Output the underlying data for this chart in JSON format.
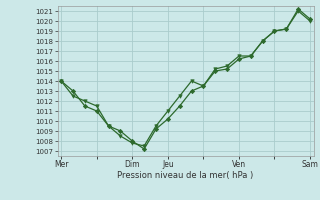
{
  "background_color": "#cce8e8",
  "plot_bg_color": "#cce8e8",
  "grid_color": "#aacccc",
  "line_color": "#2d6a2d",
  "marker_color": "#2d6a2d",
  "xlabel": "Pression niveau de la mer( hPa )",
  "ylim": [
    1006.5,
    1021.5
  ],
  "yticks": [
    1007,
    1008,
    1009,
    1010,
    1011,
    1012,
    1013,
    1014,
    1015,
    1016,
    1017,
    1018,
    1019,
    1020,
    1021
  ],
  "xtick_labels": [
    "Mer",
    "",
    "Dim",
    "Jeu",
    "",
    "Ven",
    "",
    "Sam"
  ],
  "xtick_positions": [
    0,
    3,
    6,
    9,
    12,
    15,
    18,
    21
  ],
  "line1_x": [
    0,
    1,
    2,
    3,
    4,
    5,
    6,
    7,
    8,
    9,
    10,
    11,
    12,
    13,
    14,
    15,
    16,
    17,
    18,
    19,
    20,
    21
  ],
  "line1_y": [
    1014,
    1013,
    1011.5,
    1011,
    1009.5,
    1009,
    1008,
    1007.2,
    1009.2,
    1010.2,
    1011.5,
    1013,
    1013.5,
    1015,
    1015.2,
    1016.2,
    1016.5,
    1018,
    1019,
    1019.2,
    1021.2,
    1020.2
  ],
  "line2_x": [
    0,
    1,
    2,
    3,
    4,
    5,
    6,
    7,
    8,
    9,
    10,
    11,
    12,
    13,
    14,
    15,
    16,
    17,
    18,
    19,
    20,
    21
  ],
  "line2_y": [
    1014,
    1012.5,
    1012,
    1011.5,
    1009.5,
    1008.5,
    1007.8,
    1007.5,
    1009.5,
    1011,
    1012.5,
    1014,
    1013.5,
    1015.2,
    1015.5,
    1016.5,
    1016.5,
    1018,
    1019,
    1019.2,
    1021,
    1020
  ],
  "figsize": [
    3.2,
    2.0
  ],
  "dpi": 100
}
